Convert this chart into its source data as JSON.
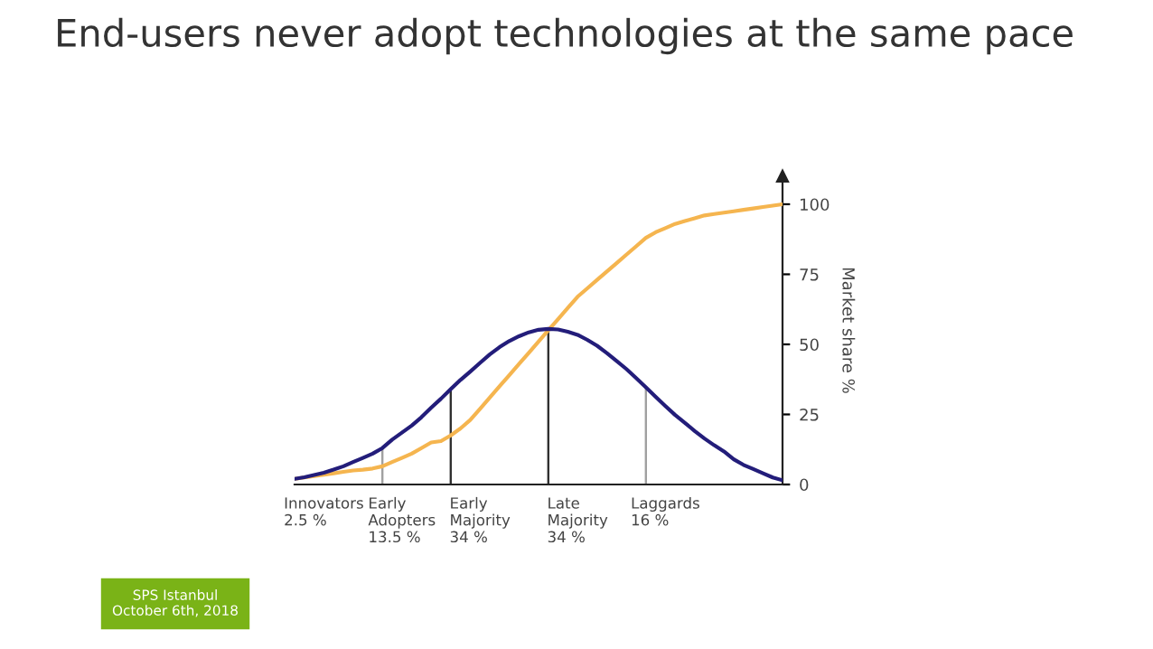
{
  "chart_data": {
    "type": "line",
    "title": "End-users never adopt technologies at the same pace",
    "ylabel": "Market share %",
    "categories": [
      null,
      null,
      null,
      "Innovators\n2.5 %",
      null,
      null,
      null,
      null,
      null,
      null,
      null,
      "Early\nAdopters\n13.5 %",
      null,
      null,
      null,
      null,
      null,
      null,
      null,
      "Early\nMajority\n34 %",
      null,
      null,
      null,
      null,
      null,
      null,
      null,
      null,
      null,
      "Late\nMajority\n34 %",
      null,
      null,
      null,
      null,
      null,
      null,
      null,
      null,
      "Laggards\n16 %",
      null,
      null,
      null,
      null,
      null,
      null,
      null,
      null,
      null,
      null,
      null,
      null
    ],
    "series": [
      {
        "color": "#f5b54f",
        "values": [
          2,
          2.5,
          3,
          3.5,
          4,
          4.5,
          5,
          5.3,
          5.7,
          6.5,
          8,
          9.5,
          11,
          13,
          15,
          15.5,
          17.5,
          20,
          23,
          27,
          31,
          35,
          39,
          43,
          47,
          51,
          55,
          59,
          63,
          67,
          70,
          73,
          76,
          79,
          82,
          85,
          88,
          90,
          91.5,
          93,
          94,
          95,
          96,
          96.5,
          97,
          97.5,
          98,
          98.5,
          99,
          99.5,
          100
        ]
      },
      {
        "color": "#231d7a",
        "values": [
          2,
          2.6,
          3.4,
          4.2,
          5.3,
          6.5,
          8,
          9.5,
          11,
          13,
          16,
          18.5,
          21,
          24,
          27.4,
          30.6,
          34,
          37.3,
          40.3,
          43.4,
          46.4,
          49,
          51.2,
          52.9,
          54.3,
          55.2,
          55.5,
          55.3,
          54.5,
          53.4,
          51.6,
          49.5,
          46.9,
          44.1,
          41.2,
          38,
          34.7,
          31.3,
          28,
          24.8,
          22,
          19.1,
          16.4,
          14,
          11.8,
          9,
          7,
          5.5,
          4,
          2.5,
          1.5
        ]
      },
      {
        "type": "bar",
        "colors": [
          null,
          null,
          null,
          null,
          null,
          null,
          null,
          null,
          null,
          "#a0a0a0",
          null,
          null,
          null,
          null,
          null,
          null,
          "#303030",
          null,
          null,
          null,
          null,
          null,
          null,
          null,
          null,
          null,
          "#303030",
          null,
          null,
          null,
          null,
          null,
          null,
          null,
          null,
          null,
          "#a0a0a0",
          null,
          null,
          null,
          null,
          null,
          null,
          null,
          null,
          null,
          null,
          null,
          null,
          null,
          null
        ],
        "values": [
          null,
          null,
          null,
          null,
          null,
          null,
          null,
          null,
          null,
          13,
          null,
          null,
          null,
          null,
          null,
          null,
          34,
          null,
          null,
          null,
          null,
          null,
          null,
          null,
          null,
          null,
          55.5,
          null,
          null,
          null,
          null,
          null,
          null,
          null,
          null,
          null,
          34.7,
          null,
          null,
          null,
          null,
          null,
          null,
          null,
          null,
          null,
          null,
          null,
          null,
          null,
          null
        ]
      }
    ],
    "ylim": [
      0,
      110
    ],
    "yticks": [
      0,
      25,
      50,
      75,
      100
    ],
    "annotations": [
      "SPS Istanbul\nOctober 6th, 2018"
    ],
    "grid": false,
    "legend": false
  }
}
